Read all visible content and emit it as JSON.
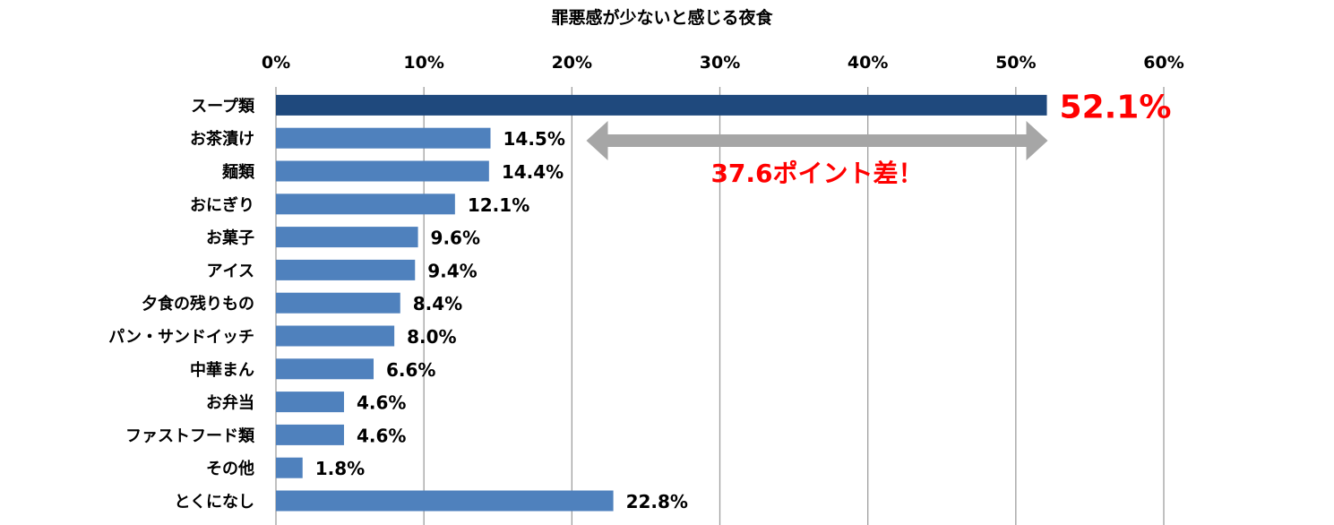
{
  "chart_data": {
    "type": "bar",
    "orientation": "horizontal",
    "title": "罪悪感が少ないと感じる夜食",
    "xlim": [
      0,
      60
    ],
    "x_ticks": [
      "0%",
      "10%",
      "20%",
      "30%",
      "40%",
      "50%",
      "60%"
    ],
    "grid": true,
    "axis_position": "top",
    "categories": [
      "スープ類",
      "お茶漬け",
      "麺類",
      "おにぎり",
      "お菓子",
      "アイス",
      "夕食の残りもの",
      "パン・サンドイッチ",
      "中華まん",
      "お弁当",
      "ファストフード類",
      "その他",
      "とくになし"
    ],
    "values": [
      52.1,
      14.5,
      14.4,
      12.1,
      9.6,
      9.4,
      8.4,
      8.0,
      6.6,
      4.6,
      4.6,
      1.8,
      22.8
    ],
    "data_labels": [
      "52.1%",
      "14.5%",
      "14.4%",
      "12.1%",
      "9.6%",
      "9.4%",
      "8.4%",
      "8.0%",
      "6.6%",
      "4.6%",
      "4.6%",
      "1.8%",
      "22.8%"
    ],
    "highlight_index": 0,
    "annotation": {
      "text": "37.6ポイント差！",
      "from_value": 14.5,
      "to_value": 52.1
    },
    "colors": {
      "bar": "#4f81bd",
      "highlight_bar": "#1f497d",
      "highlight_label": "#ff0000",
      "annotation_text": "#ff0000",
      "arrow": "#a6a6a6",
      "grid": "#9e9e9e",
      "text": "#000000"
    }
  }
}
